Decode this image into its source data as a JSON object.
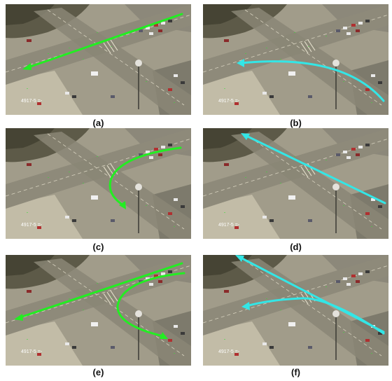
{
  "colors": {
    "green_track": "#22ee22",
    "cyan_track": "#33e6e6"
  },
  "panels": [
    {
      "caption": "(a)",
      "stamp": "4917-5 =-",
      "track_color": "green"
    },
    {
      "caption": "(b)",
      "stamp": "4917-5 =-",
      "track_color": "cyan"
    },
    {
      "caption": "(c)",
      "stamp": "4917-5 =-",
      "track_color": "green"
    },
    {
      "caption": "(d)",
      "stamp": "4917-5 =-",
      "track_color": "cyan"
    },
    {
      "caption": "(e)",
      "stamp": "4917-5 =-",
      "track_color": "green"
    },
    {
      "caption": "(f)",
      "stamp": "4917-5 =-",
      "track_color": "cyan"
    }
  ]
}
